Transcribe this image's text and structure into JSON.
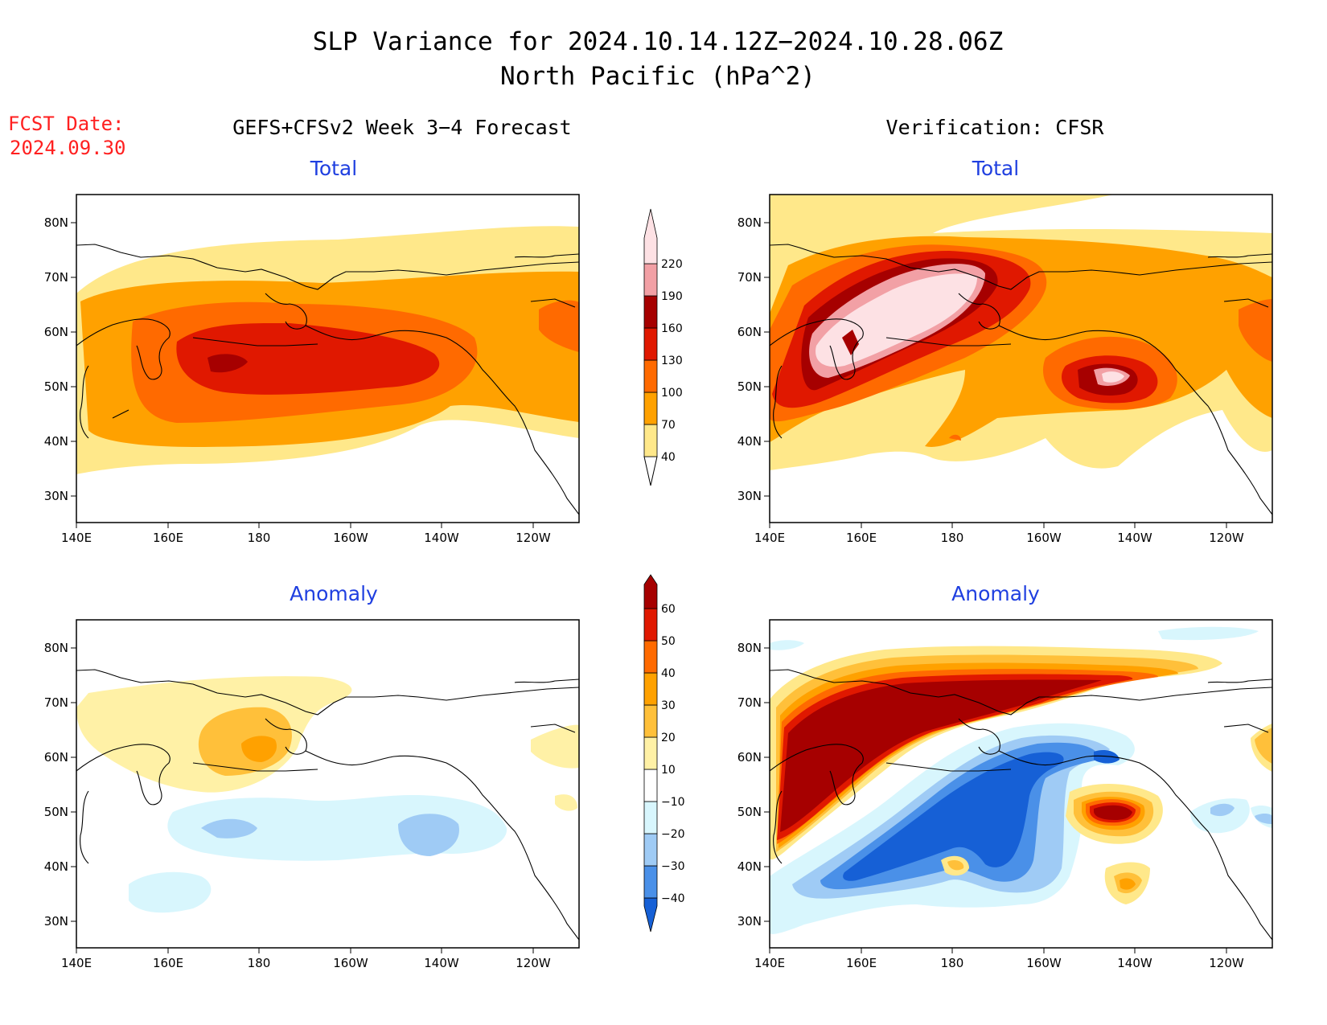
{
  "title": {
    "line1": "SLP Variance for 2024.10.14.12Z−2024.10.28.06Z",
    "line2": "North Pacific (hPa^2)"
  },
  "fcst": {
    "label": "FCST Date:",
    "date": "2024.09.30"
  },
  "columns": {
    "left": "GEFS+CFSv2 Week 3−4 Forecast",
    "right": "Verification: CFSR"
  },
  "panel_titles": {
    "total": "Total",
    "anomaly": "Anomaly"
  },
  "colorbars": {
    "total": {
      "levels": [
        "40",
        "70",
        "100",
        "130",
        "160",
        "190",
        "220"
      ],
      "colors": [
        "#ffe88a",
        "#ffa100",
        "#ff6a00",
        "#e01800",
        "#a60000",
        "#f2a0a5",
        "#fde1e4"
      ]
    },
    "anomaly": {
      "levels": [
        "−40",
        "−30",
        "−20",
        "−10",
        "10",
        "20",
        "30",
        "40",
        "50",
        "60"
      ],
      "colors": [
        "#1660d6",
        "#4a90e8",
        "#9fcbf5",
        "#d8f6fd",
        "#ffffff",
        "#fff1a6",
        "#ffc03a",
        "#ffa100",
        "#ff6a00",
        "#e01800",
        "#a60000"
      ]
    }
  },
  "chart_data": [
    {
      "type": "heatmap",
      "id": "forecast-total",
      "title": "Total",
      "column": "GEFS+CFSv2 Week 3−4 Forecast",
      "xlim": [
        140,
        250
      ],
      "ylim": [
        25,
        85
      ],
      "xticks": [
        "140E",
        "160E",
        "180",
        "160W",
        "140W",
        "120W"
      ],
      "yticks": [
        "30N",
        "40N",
        "50N",
        "60N",
        "70N",
        "80N"
      ],
      "features": [
        {
          "lon": 182,
          "lat": 53,
          "value": 165,
          "desc": "max near 180"
        },
        {
          "lon": 190,
          "lat": 52,
          "value": 135,
          "desc": "central Pacific core"
        },
        {
          "lon": 245,
          "lat": 60,
          "value": 105,
          "desc": "eastern edge"
        }
      ]
    },
    {
      "type": "heatmap",
      "id": "verification-total",
      "title": "Total",
      "column": "Verification: CFSR",
      "xlim": [
        140,
        250
      ],
      "ylim": [
        25,
        85
      ],
      "xticks": [
        "140E",
        "160E",
        "180",
        "160W",
        "140W",
        "120W"
      ],
      "yticks": [
        "30N",
        "40N",
        "50N",
        "60N",
        "70N",
        "80N"
      ],
      "features": [
        {
          "lon": 172,
          "lat": 60,
          "value": 225,
          "desc": "Bering Sea max"
        },
        {
          "lon": 218,
          "lat": 51,
          "value": 225,
          "desc": "Gulf of Alaska max"
        }
      ]
    },
    {
      "type": "heatmap",
      "id": "forecast-anomaly",
      "title": "Anomaly",
      "column": "GEFS+CFSv2 Week 3−4 Forecast",
      "xlim": [
        140,
        250
      ],
      "ylim": [
        25,
        85
      ],
      "xticks": [
        "140E",
        "160E",
        "180",
        "160W",
        "140W",
        "120W"
      ],
      "yticks": [
        "30N",
        "40N",
        "50N",
        "60N",
        "70N",
        "80N"
      ],
      "features": [
        {
          "lon": 180,
          "lat": 62,
          "value": 35,
          "desc": "positive anomaly, Bering"
        },
        {
          "lon": 173,
          "lat": 48,
          "value": -25,
          "desc": "negative anomaly"
        },
        {
          "lon": 210,
          "lat": 46,
          "value": -25,
          "desc": "negative anomaly"
        }
      ]
    },
    {
      "type": "heatmap",
      "id": "verification-anomaly",
      "title": "Anomaly",
      "column": "Verification: CFSR",
      "xlim": [
        140,
        250
      ],
      "ylim": [
        25,
        85
      ],
      "xticks": [
        "140E",
        "160E",
        "180",
        "160W",
        "140W",
        "120W"
      ],
      "yticks": [
        "30N",
        "40N",
        "50N",
        "60N",
        "70N",
        "80N"
      ],
      "features": [
        {
          "lon": 175,
          "lat": 63,
          "value": 65,
          "desc": "large positive band"
        },
        {
          "lon": 217,
          "lat": 51,
          "value": 65,
          "desc": "Gulf of Alaska positive"
        },
        {
          "lon": 185,
          "lat": 48,
          "value": -45,
          "desc": "negative band"
        }
      ]
    }
  ]
}
